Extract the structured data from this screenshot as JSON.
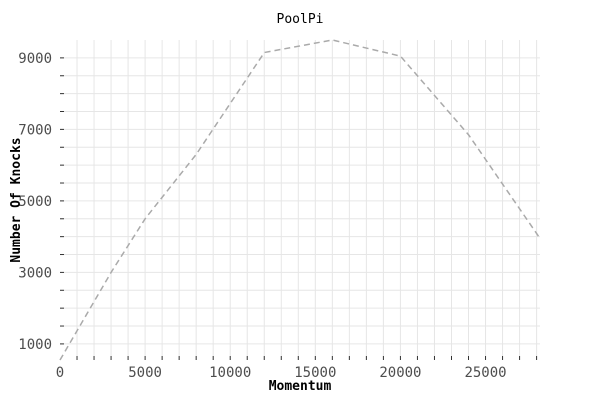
{
  "chart_data": {
    "type": "line",
    "title": "PoolPi",
    "xlabel": "Momentum",
    "ylabel": "Number Of Knocks",
    "xlim": [
      0,
      28200
    ],
    "ylim": [
      550,
      9500
    ],
    "x_ticks": [
      "0",
      "5000",
      "10000",
      "15000",
      "20000",
      "25000"
    ],
    "x_tick_values": [
      0,
      5000,
      10000,
      15000,
      20000,
      25000
    ],
    "y_ticks": [
      "1000",
      "3000",
      "5000",
      "7000",
      "9000"
    ],
    "y_tick_values": [
      1000,
      3000,
      5000,
      7000,
      9000
    ],
    "grid": true,
    "series": [
      {
        "color": "#aaaaaa",
        "style": "dashed",
        "x": [
          0,
          3000,
          5000,
          8000,
          12000,
          16000,
          20000,
          24000,
          28200
        ],
        "y": [
          550,
          3000,
          4500,
          6300,
          9150,
          9500,
          9050,
          6850,
          3950
        ]
      }
    ]
  }
}
